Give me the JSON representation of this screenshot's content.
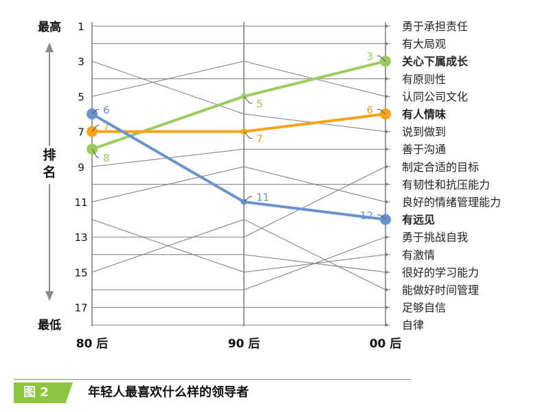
{
  "chart_data": {
    "type": "line",
    "title": "年轻人最喜欢什么样的领导者",
    "figure_label": "图 2",
    "x": [
      "80 后",
      "90 后",
      "00 后"
    ],
    "y_axis_label": "排名",
    "y_top_label": "最高",
    "y_bottom_label": "最低",
    "y_ticks": [
      1,
      3,
      5,
      7,
      9,
      11,
      13,
      15,
      17
    ],
    "ylim": [
      1,
      18
    ],
    "y_inverted": true,
    "traits": [
      {
        "name": "勇于承担责任",
        "ranks": [
          1,
          1,
          1
        ],
        "highlight": false
      },
      {
        "name": "有大局观",
        "ranks": [
          2,
          2,
          2
        ],
        "highlight": false
      },
      {
        "name": "关心下属成长",
        "ranks": [
          8,
          5,
          3
        ],
        "highlight": true,
        "color": "#9ccb5f",
        "value_labels": [
          "8",
          "5",
          "3"
        ]
      },
      {
        "name": "有原则性",
        "ranks": [
          4,
          4,
          4
        ],
        "highlight": false
      },
      {
        "name": "认同公司文化",
        "ranks": [
          5,
          3,
          5
        ],
        "highlight": false
      },
      {
        "name": "有人情味",
        "ranks": [
          7,
          7,
          6
        ],
        "highlight": true,
        "color": "#f7a21b",
        "value_labels": [
          "7",
          "7",
          "6"
        ]
      },
      {
        "name": "说到做到",
        "ranks": [
          3,
          6,
          7
        ],
        "highlight": false
      },
      {
        "name": "善于沟通",
        "ranks": [
          9,
          8,
          8
        ],
        "highlight": false
      },
      {
        "name": "制定合适的目标",
        "ranks": [
          13,
          13,
          9
        ],
        "highlight": false
      },
      {
        "name": "有韧性和抗压能力",
        "ranks": [
          10,
          10,
          10
        ],
        "highlight": false
      },
      {
        "name": "良好的情绪管理能力",
        "ranks": [
          11,
          9,
          11
        ],
        "highlight": false
      },
      {
        "name": "有远见",
        "ranks": [
          6,
          11,
          12
        ],
        "highlight": true,
        "color": "#6a92cc",
        "value_labels": [
          "6",
          "11",
          "12"
        ]
      },
      {
        "name": "勇于挑战自我",
        "ranks": [
          16,
          16,
          13
        ],
        "highlight": false
      },
      {
        "name": "有激情",
        "ranks": [
          12,
          15,
          14
        ],
        "highlight": false
      },
      {
        "name": "很好的学习能力",
        "ranks": [
          14,
          14,
          15
        ],
        "highlight": false
      },
      {
        "name": "能做好时间管理",
        "ranks": [
          15,
          12,
          16
        ],
        "highlight": false
      },
      {
        "name": "足够自信",
        "ranks": [
          17,
          17,
          17
        ],
        "highlight": false
      },
      {
        "name": "自律",
        "ranks": [
          18,
          18,
          18
        ],
        "highlight": false
      }
    ],
    "colors": {
      "grid_line": "#7a7a7a",
      "axis": "#333333",
      "arrow": "#8a8a8a",
      "caption_accent": "#8cc63f"
    }
  }
}
